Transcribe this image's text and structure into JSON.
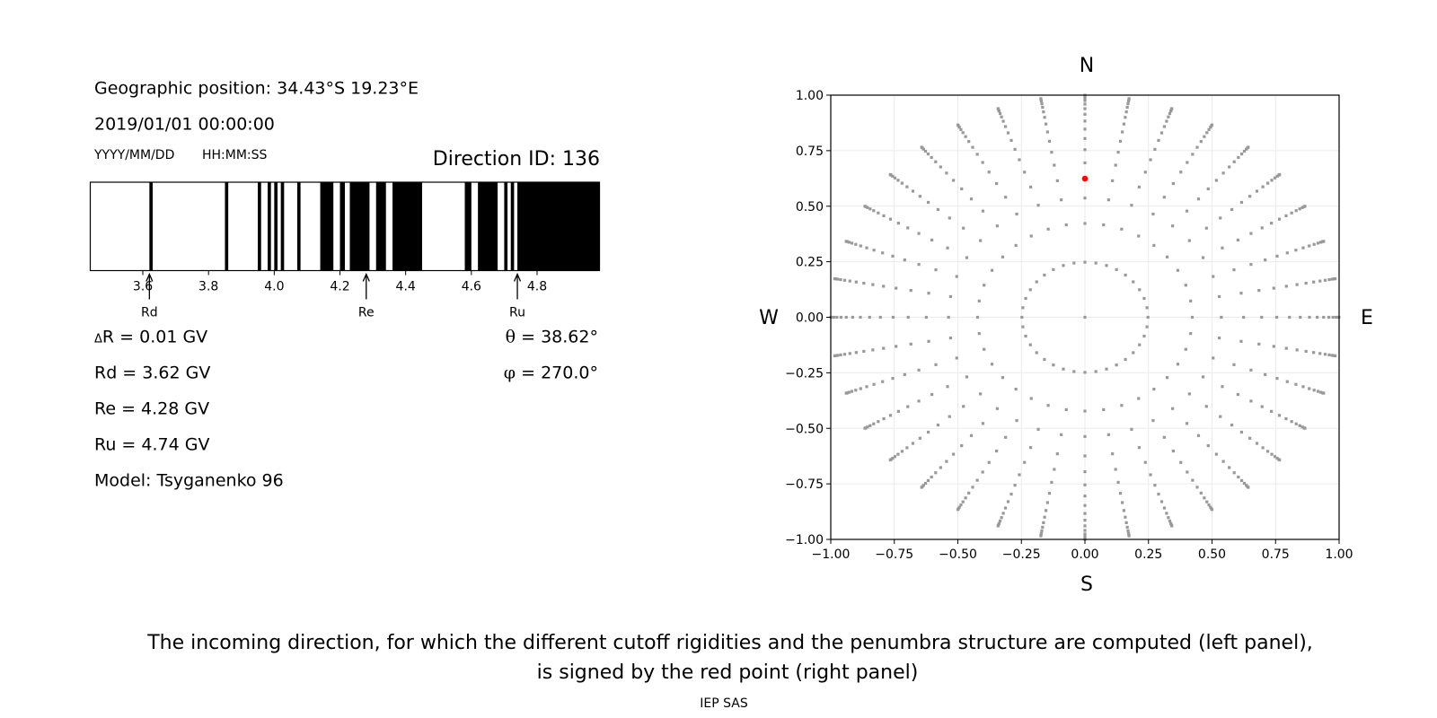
{
  "left_panel": {
    "geo_position": "Geographic position: 34.43°S 19.23°E",
    "datetime": "2019/01/01 00:00:00",
    "date_format": "YYYY/MM/DD",
    "time_format": "HH:MM:SS",
    "direction_id": "Direction ID: 136",
    "delta_symbol": "Δ",
    "delta_r": "R = 0.01 GV",
    "rd": "Rd = 3.62 GV",
    "re": "Re = 4.28 GV",
    "ru": "Ru = 4.74 GV",
    "model": "Model: Tsyganenko 96",
    "theta_symbol": "θ",
    "theta": " = 38.62°",
    "phi_symbol": "φ",
    "phi": " = 270.0°"
  },
  "chart_data": [
    {
      "type": "bar",
      "description_type": "penumbra",
      "xlim": [
        3.44,
        4.99
      ],
      "xticks": [
        "3.6",
        "3.8",
        "4.0",
        "4.2",
        "4.4",
        "4.6",
        "4.8"
      ],
      "forbidden_bands_gv": [
        [
          3.62,
          3.63
        ],
        [
          3.85,
          3.86
        ],
        [
          3.95,
          3.96
        ],
        [
          3.98,
          3.99
        ],
        [
          4.0,
          4.01
        ],
        [
          4.02,
          4.03
        ],
        [
          4.07,
          4.08
        ],
        [
          4.14,
          4.18
        ],
        [
          4.2,
          4.215
        ],
        [
          4.23,
          4.29
        ],
        [
          4.31,
          4.34
        ],
        [
          4.36,
          4.45
        ],
        [
          4.58,
          4.6
        ],
        [
          4.62,
          4.68
        ],
        [
          4.7,
          4.71
        ],
        [
          4.72,
          4.73
        ],
        [
          4.74,
          4.99
        ]
      ],
      "markers": [
        {
          "label": "Rd",
          "value": 3.62
        },
        {
          "label": "Re",
          "value": 4.28
        },
        {
          "label": "Ru",
          "value": 4.74
        }
      ],
      "colors": {
        "allowed": "#ffffff",
        "forbidden": "#000000"
      }
    },
    {
      "type": "scatter",
      "xlim": [
        -1.0,
        1.0
      ],
      "ylim": [
        -1.0,
        1.0
      ],
      "grid": true,
      "xticks": [
        "−1.00",
        "−0.75",
        "−0.50",
        "−0.25",
        "0.00",
        "0.25",
        "0.50",
        "0.75",
        "1.00"
      ],
      "yticks": [
        "1.00",
        "0.75",
        "0.50",
        "0.25",
        "0.00",
        "−0.25",
        "−0.50",
        "−0.75",
        "−1.00"
      ],
      "compass": {
        "n": "N",
        "s": "S",
        "w": "W",
        "e": "E"
      },
      "grid_zenith_deg": [
        0,
        14.36,
        24.98,
        32.46,
        38.62,
        44.05,
        48.99,
        53.58,
        57.91,
        62.05,
        66.03,
        69.89,
        73.67,
        77.36,
        81.01,
        84.62,
        88.21
      ],
      "grid_azimuth_step_deg": 10,
      "selected": {
        "zenith_deg": 38.62,
        "azimuth_deg": 270.0
      },
      "colors": {
        "grid_points": "#999999",
        "selected": "#ff0000"
      }
    }
  ],
  "caption": {
    "line1": "The incoming direction, for which the different cutoff rigidities and the penumbra structure are computed (left panel),",
    "line2": "is signed by the red point (right panel)",
    "credit": "IEP SAS"
  }
}
